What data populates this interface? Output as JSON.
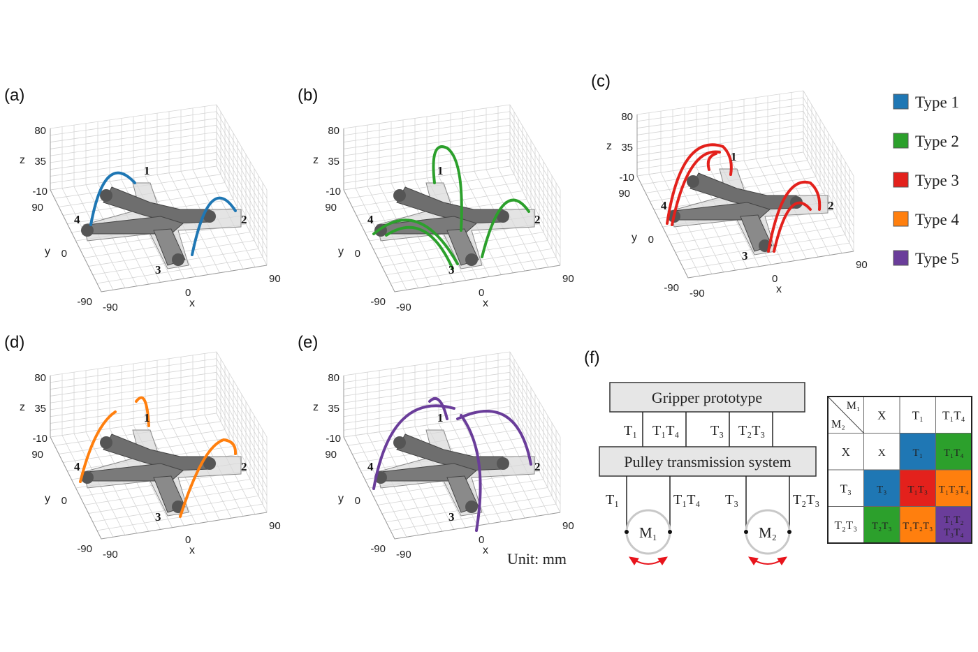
{
  "panels": [
    {
      "label": "(a)",
      "type": "Type 1",
      "z_ticks": [
        "80",
        "35",
        "-10"
      ],
      "z_label": "z",
      "y_ticks": [
        "90",
        "0",
        "-90"
      ],
      "y_label": "y",
      "x_ticks": [
        "-90",
        "0",
        "90"
      ],
      "x_label": "x",
      "fingers": [
        "1",
        "2",
        "3",
        "4"
      ]
    },
    {
      "label": "(b)",
      "type": "Type 2",
      "z_ticks": [
        "80",
        "35",
        "-10"
      ],
      "z_label": "z",
      "y_ticks": [
        "90",
        "0",
        "-90"
      ],
      "y_label": "y",
      "x_ticks": [
        "-90",
        "0",
        "90"
      ],
      "x_label": "x",
      "fingers": [
        "1",
        "2",
        "3",
        "4"
      ]
    },
    {
      "label": "(c)",
      "type": "Type 3",
      "z_ticks": [
        "80",
        "35",
        "-10"
      ],
      "z_label": "z",
      "y_ticks": [
        "90",
        "0",
        "-90"
      ],
      "y_label": "y",
      "x_ticks": [
        "-90",
        "0",
        "90"
      ],
      "x_label": "x",
      "fingers": [
        "1",
        "2",
        "3",
        "4"
      ]
    },
    {
      "label": "(d)",
      "type": "Type 4",
      "z_ticks": [
        "80",
        "35",
        "-10"
      ],
      "z_label": "z",
      "y_ticks": [
        "90",
        "0",
        "-90"
      ],
      "y_label": "y",
      "x_ticks": [
        "-90",
        "0",
        "90"
      ],
      "x_label": "x",
      "fingers": [
        "1",
        "2",
        "3",
        "4"
      ]
    },
    {
      "label": "(e)",
      "type": "Type 5",
      "z_ticks": [
        "80",
        "35",
        "-10"
      ],
      "z_label": "z",
      "y_ticks": [
        "90",
        "0",
        "-90"
      ],
      "y_label": "y",
      "x_ticks": [
        "-90",
        "0",
        "90"
      ],
      "x_label": "x",
      "fingers": [
        "1",
        "2",
        "3",
        "4"
      ]
    }
  ],
  "unit_label": "Unit: mm",
  "legend": [
    {
      "label": "Type 1",
      "color": "#1f77b4"
    },
    {
      "label": "Type 2",
      "color": "#2ca02c"
    },
    {
      "label": "Type 3",
      "color": "#e3211c"
    },
    {
      "label": "Type 4",
      "color": "#ff7f0e"
    },
    {
      "label": "Type 5",
      "color": "#6a3d9a"
    }
  ],
  "diagram": {
    "panel_label": "(f)",
    "top_box": "Gripper prototype",
    "middle_box": "Pulley transmission system",
    "upper_links": [
      "T₁",
      "T₁T₄",
      "T₃",
      "T₂T₃"
    ],
    "lower_links": [
      "T₁",
      "T₁T₄",
      "T₃",
      "T₂T₃"
    ],
    "motors": [
      "M₁",
      "M₂"
    ],
    "arrow_color": "#e8141c"
  },
  "table": {
    "corner_top": "M₁",
    "corner_bottom": "M₂",
    "col_headers": [
      "X",
      "T₁",
      "T₁T₄"
    ],
    "rows": [
      {
        "header": "X",
        "cells": [
          {
            "text": "X",
            "color": "#ffffff"
          },
          {
            "text": "T₁",
            "color": "#1f77b4"
          },
          {
            "text": "T₁T₄",
            "color": "#2ca02c"
          }
        ]
      },
      {
        "header": "T₃",
        "cells": [
          {
            "text": "T₃",
            "color": "#1f77b4"
          },
          {
            "text": "T₁T₃",
            "color": "#e3211c"
          },
          {
            "text": "T₁T₃T₄",
            "color": "#ff7f0e"
          }
        ]
      },
      {
        "header": "T₂T₃",
        "cells": [
          {
            "text": "T₂T₃",
            "color": "#2ca02c"
          },
          {
            "text": "T₁T₂T₃",
            "color": "#ff7f0e"
          },
          {
            "text": "T₁T₂",
            "text2": "T₃T₄",
            "color": "#6a3d9a"
          }
        ]
      }
    ]
  }
}
